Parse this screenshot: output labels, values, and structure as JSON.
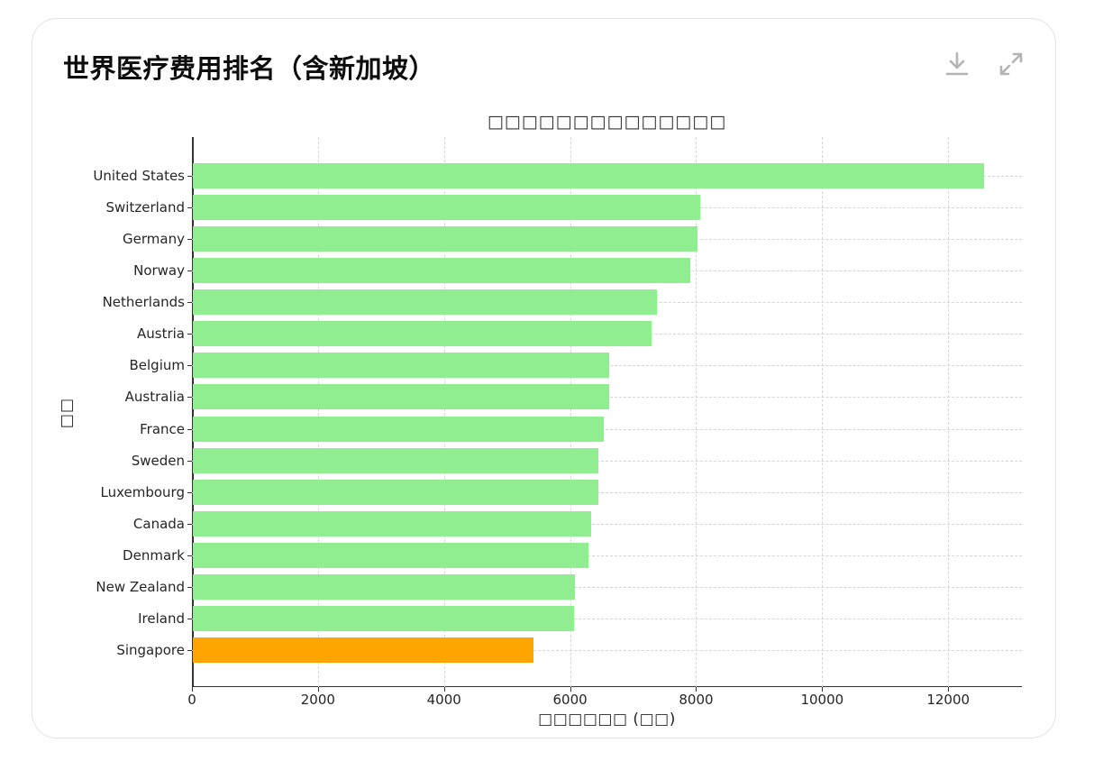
{
  "card": {
    "title": "世界医疗费用排名（含新加坡）",
    "actions": [
      {
        "name": "download",
        "icon": "download-icon"
      },
      {
        "name": "expand",
        "icon": "expand-icon"
      }
    ]
  },
  "colors": {
    "default_bar": "#90ee90",
    "highlight_bar": "#ffa500",
    "icon": "#b4b4b4"
  },
  "chart_data": {
    "type": "bar",
    "orientation": "horizontal",
    "title": "□□□□□□□□□□□□□□",
    "xlabel": "□□□□□□ (□□)",
    "ylabel": "□□",
    "categories": [
      "United States",
      "Switzerland",
      "Germany",
      "Norway",
      "Netherlands",
      "Austria",
      "Belgium",
      "Australia",
      "France",
      "Sweden",
      "Luxembourg",
      "Canada",
      "Denmark",
      "New Zealand",
      "Ireland",
      "Singapore"
    ],
    "values": [
      12550,
      8050,
      8010,
      7900,
      7370,
      7280,
      6610,
      6600,
      6520,
      6440,
      6440,
      6320,
      6280,
      6070,
      6050,
      5400
    ],
    "highlight": "Singapore",
    "xlim": [
      0,
      13170
    ],
    "xticks": [
      0,
      2000,
      4000,
      6000,
      8000,
      10000,
      12000
    ],
    "grid": true,
    "grid_style": "dashed"
  }
}
